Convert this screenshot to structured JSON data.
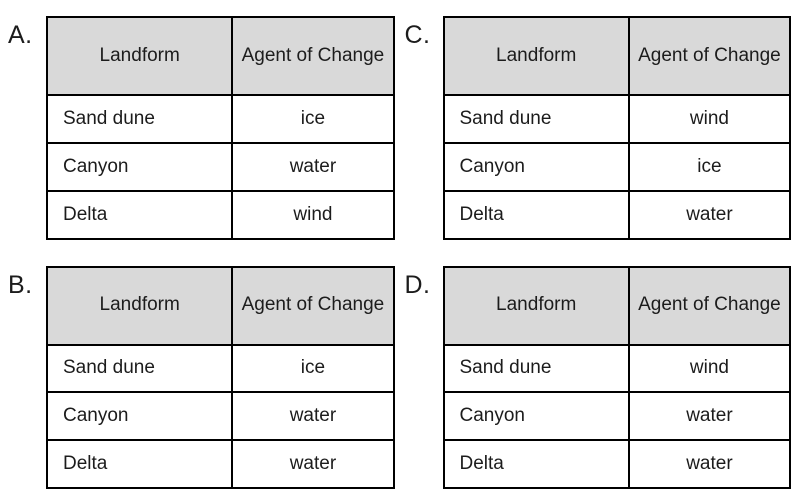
{
  "columns": [
    "Landform",
    "Agent of Change"
  ],
  "style": {
    "header_bg": "#d9d9d9",
    "border_color": "#000000",
    "text_color": "#1c1c1c"
  },
  "options": [
    {
      "label": "A.",
      "rows": [
        [
          "Sand dune",
          "ice"
        ],
        [
          "Canyon",
          "water"
        ],
        [
          "Delta",
          "wind"
        ]
      ]
    },
    {
      "label": "B.",
      "rows": [
        [
          "Sand dune",
          "ice"
        ],
        [
          "Canyon",
          "water"
        ],
        [
          "Delta",
          "water"
        ]
      ]
    },
    {
      "label": "C.",
      "rows": [
        [
          "Sand dune",
          "wind"
        ],
        [
          "Canyon",
          "ice"
        ],
        [
          "Delta",
          "water"
        ]
      ]
    },
    {
      "label": "D.",
      "rows": [
        [
          "Sand dune",
          "wind"
        ],
        [
          "Canyon",
          "water"
        ],
        [
          "Delta",
          "water"
        ]
      ]
    }
  ]
}
